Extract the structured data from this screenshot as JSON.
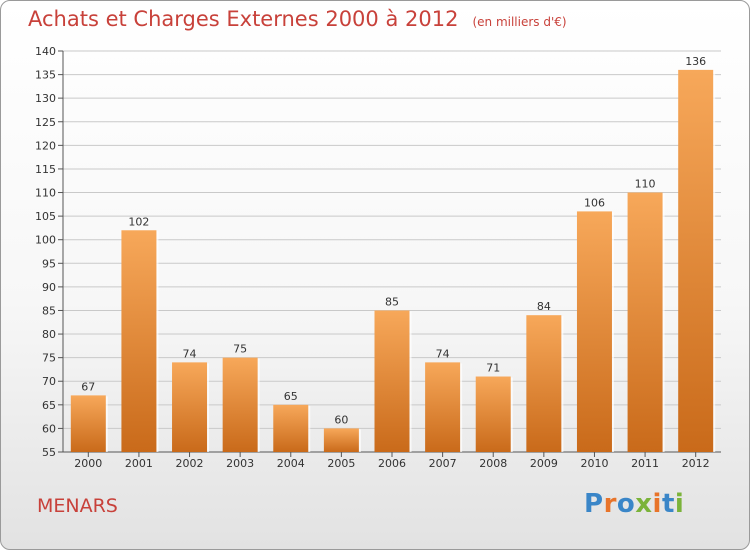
{
  "page": {
    "title": "Achats et Charges Externes 2000 à 2012",
    "subtitle": "(en milliers d'€)",
    "location": "MENARS",
    "logo": {
      "text": "Proxiti",
      "letters": [
        {
          "ch": "P",
          "color": "#3a86c8"
        },
        {
          "ch": "r",
          "color": "#e8742a"
        },
        {
          "ch": "o",
          "color": "#3a86c8"
        },
        {
          "ch": "x",
          "color": "#7bb33a"
        },
        {
          "ch": "i",
          "color": "#e8742a"
        },
        {
          "ch": "t",
          "color": "#3a86c8"
        },
        {
          "ch": "i",
          "color": "#7bb33a"
        }
      ]
    },
    "colors": {
      "title": "#c8413a",
      "bar_top": "#f7a85a",
      "bar_bottom": "#c96a1a",
      "grid": "#c9c9c9",
      "axis": "#555555"
    }
  },
  "chart_data": {
    "type": "bar",
    "title": "Achats et Charges Externes 2000 à 2012",
    "subtitle": "(en milliers d'€)",
    "xlabel": "",
    "ylabel": "",
    "categories": [
      "2000",
      "2001",
      "2002",
      "2003",
      "2004",
      "2005",
      "2006",
      "2007",
      "2008",
      "2009",
      "2010",
      "2011",
      "2012"
    ],
    "values": [
      67,
      102,
      74,
      75,
      65,
      60,
      85,
      74,
      71,
      84,
      106,
      110,
      136
    ],
    "ylim": [
      55,
      140
    ],
    "yticks": [
      55,
      60,
      65,
      70,
      75,
      80,
      85,
      90,
      95,
      100,
      105,
      110,
      115,
      120,
      125,
      130,
      135,
      140
    ],
    "grid": true,
    "data_labels": true
  }
}
